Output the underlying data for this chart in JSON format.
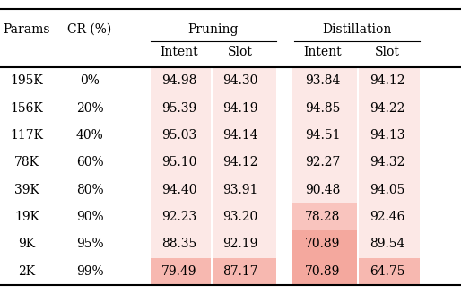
{
  "params": [
    "195K",
    "156K",
    "117K",
    "78K",
    "39K",
    "19K",
    "9K",
    "2K"
  ],
  "cr": [
    "0%",
    "20%",
    "40%",
    "60%",
    "80%",
    "90%",
    "95%",
    "99%"
  ],
  "pruning_intent": [
    "94.98",
    "95.39",
    "95.03",
    "95.10",
    "94.40",
    "92.23",
    "88.35",
    "79.49"
  ],
  "pruning_slot": [
    "94.30",
    "94.19",
    "94.14",
    "94.12",
    "93.91",
    "93.20",
    "92.19",
    "87.17"
  ],
  "distill_intent": [
    "93.84",
    "94.85",
    "94.51",
    "92.27",
    "90.48",
    "78.28",
    "70.89",
    "70.89"
  ],
  "distill_slot": [
    "94.12",
    "94.22",
    "94.13",
    "94.32",
    "94.05",
    "92.46",
    "89.54",
    "64.75"
  ],
  "cell_colors": {
    "pruning_intent": [
      "#fce8e6",
      "#fce8e6",
      "#fce8e6",
      "#fce8e6",
      "#fce8e6",
      "#fce8e6",
      "#fce8e6",
      "#f7b8b0"
    ],
    "pruning_slot": [
      "#fce8e6",
      "#fce8e6",
      "#fce8e6",
      "#fce8e6",
      "#fce8e6",
      "#fce8e6",
      "#fce8e6",
      "#f7b8b0"
    ],
    "distill_intent": [
      "#fce8e6",
      "#fce8e6",
      "#fce8e6",
      "#fce8e6",
      "#fce8e6",
      "#f9c4be",
      "#f4a89e",
      "#f4a89e"
    ],
    "distill_slot": [
      "#fce8e6",
      "#fce8e6",
      "#fce8e6",
      "#fce8e6",
      "#fce8e6",
      "#fce8e6",
      "#fce8e6",
      "#f7b8b0"
    ]
  },
  "lw_heavy": 1.5,
  "lw_light": 0.8,
  "fs_header": 10.0,
  "fs_data": 10.0,
  "fig_bg": "#ffffff"
}
